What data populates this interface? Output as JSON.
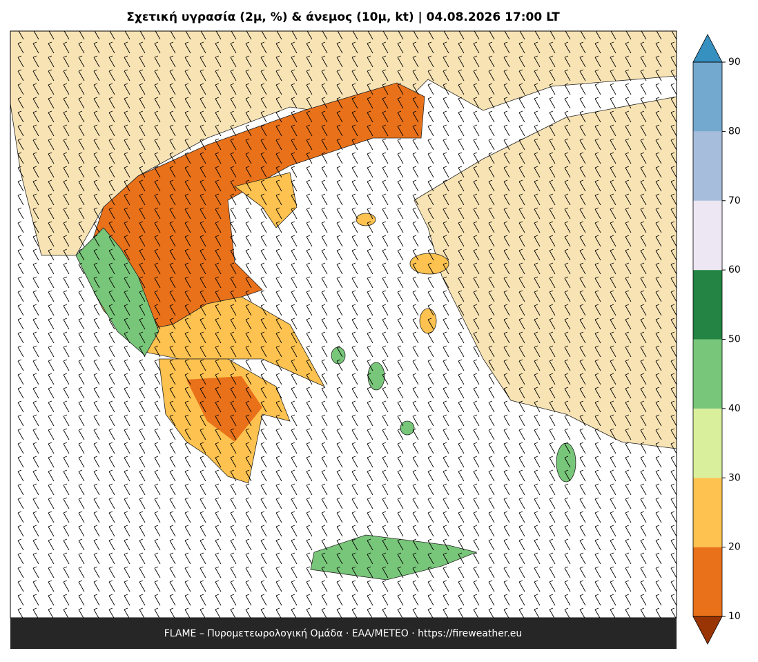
{
  "title": "Σχετική υγρασία (2μ, %) & άνεμος (10μ, kt)  |  04.08.2026 17:00 LT",
  "footer": "FLAME – Πυρομετεωρολογική Ομάδα · ΕΑΑ/METEO · https://fireweather.eu",
  "colorbar": {
    "ticks": [
      10,
      20,
      30,
      40,
      50,
      60,
      70,
      80,
      90
    ],
    "colors": [
      "#e8711a",
      "#fdc24f",
      "#d9ef9b",
      "#78c679",
      "#238443",
      "#ece7f2",
      "#a6bddb",
      "#74a9cf"
    ],
    "under_color": "#993404",
    "over_color": "#3690c0"
  }
}
